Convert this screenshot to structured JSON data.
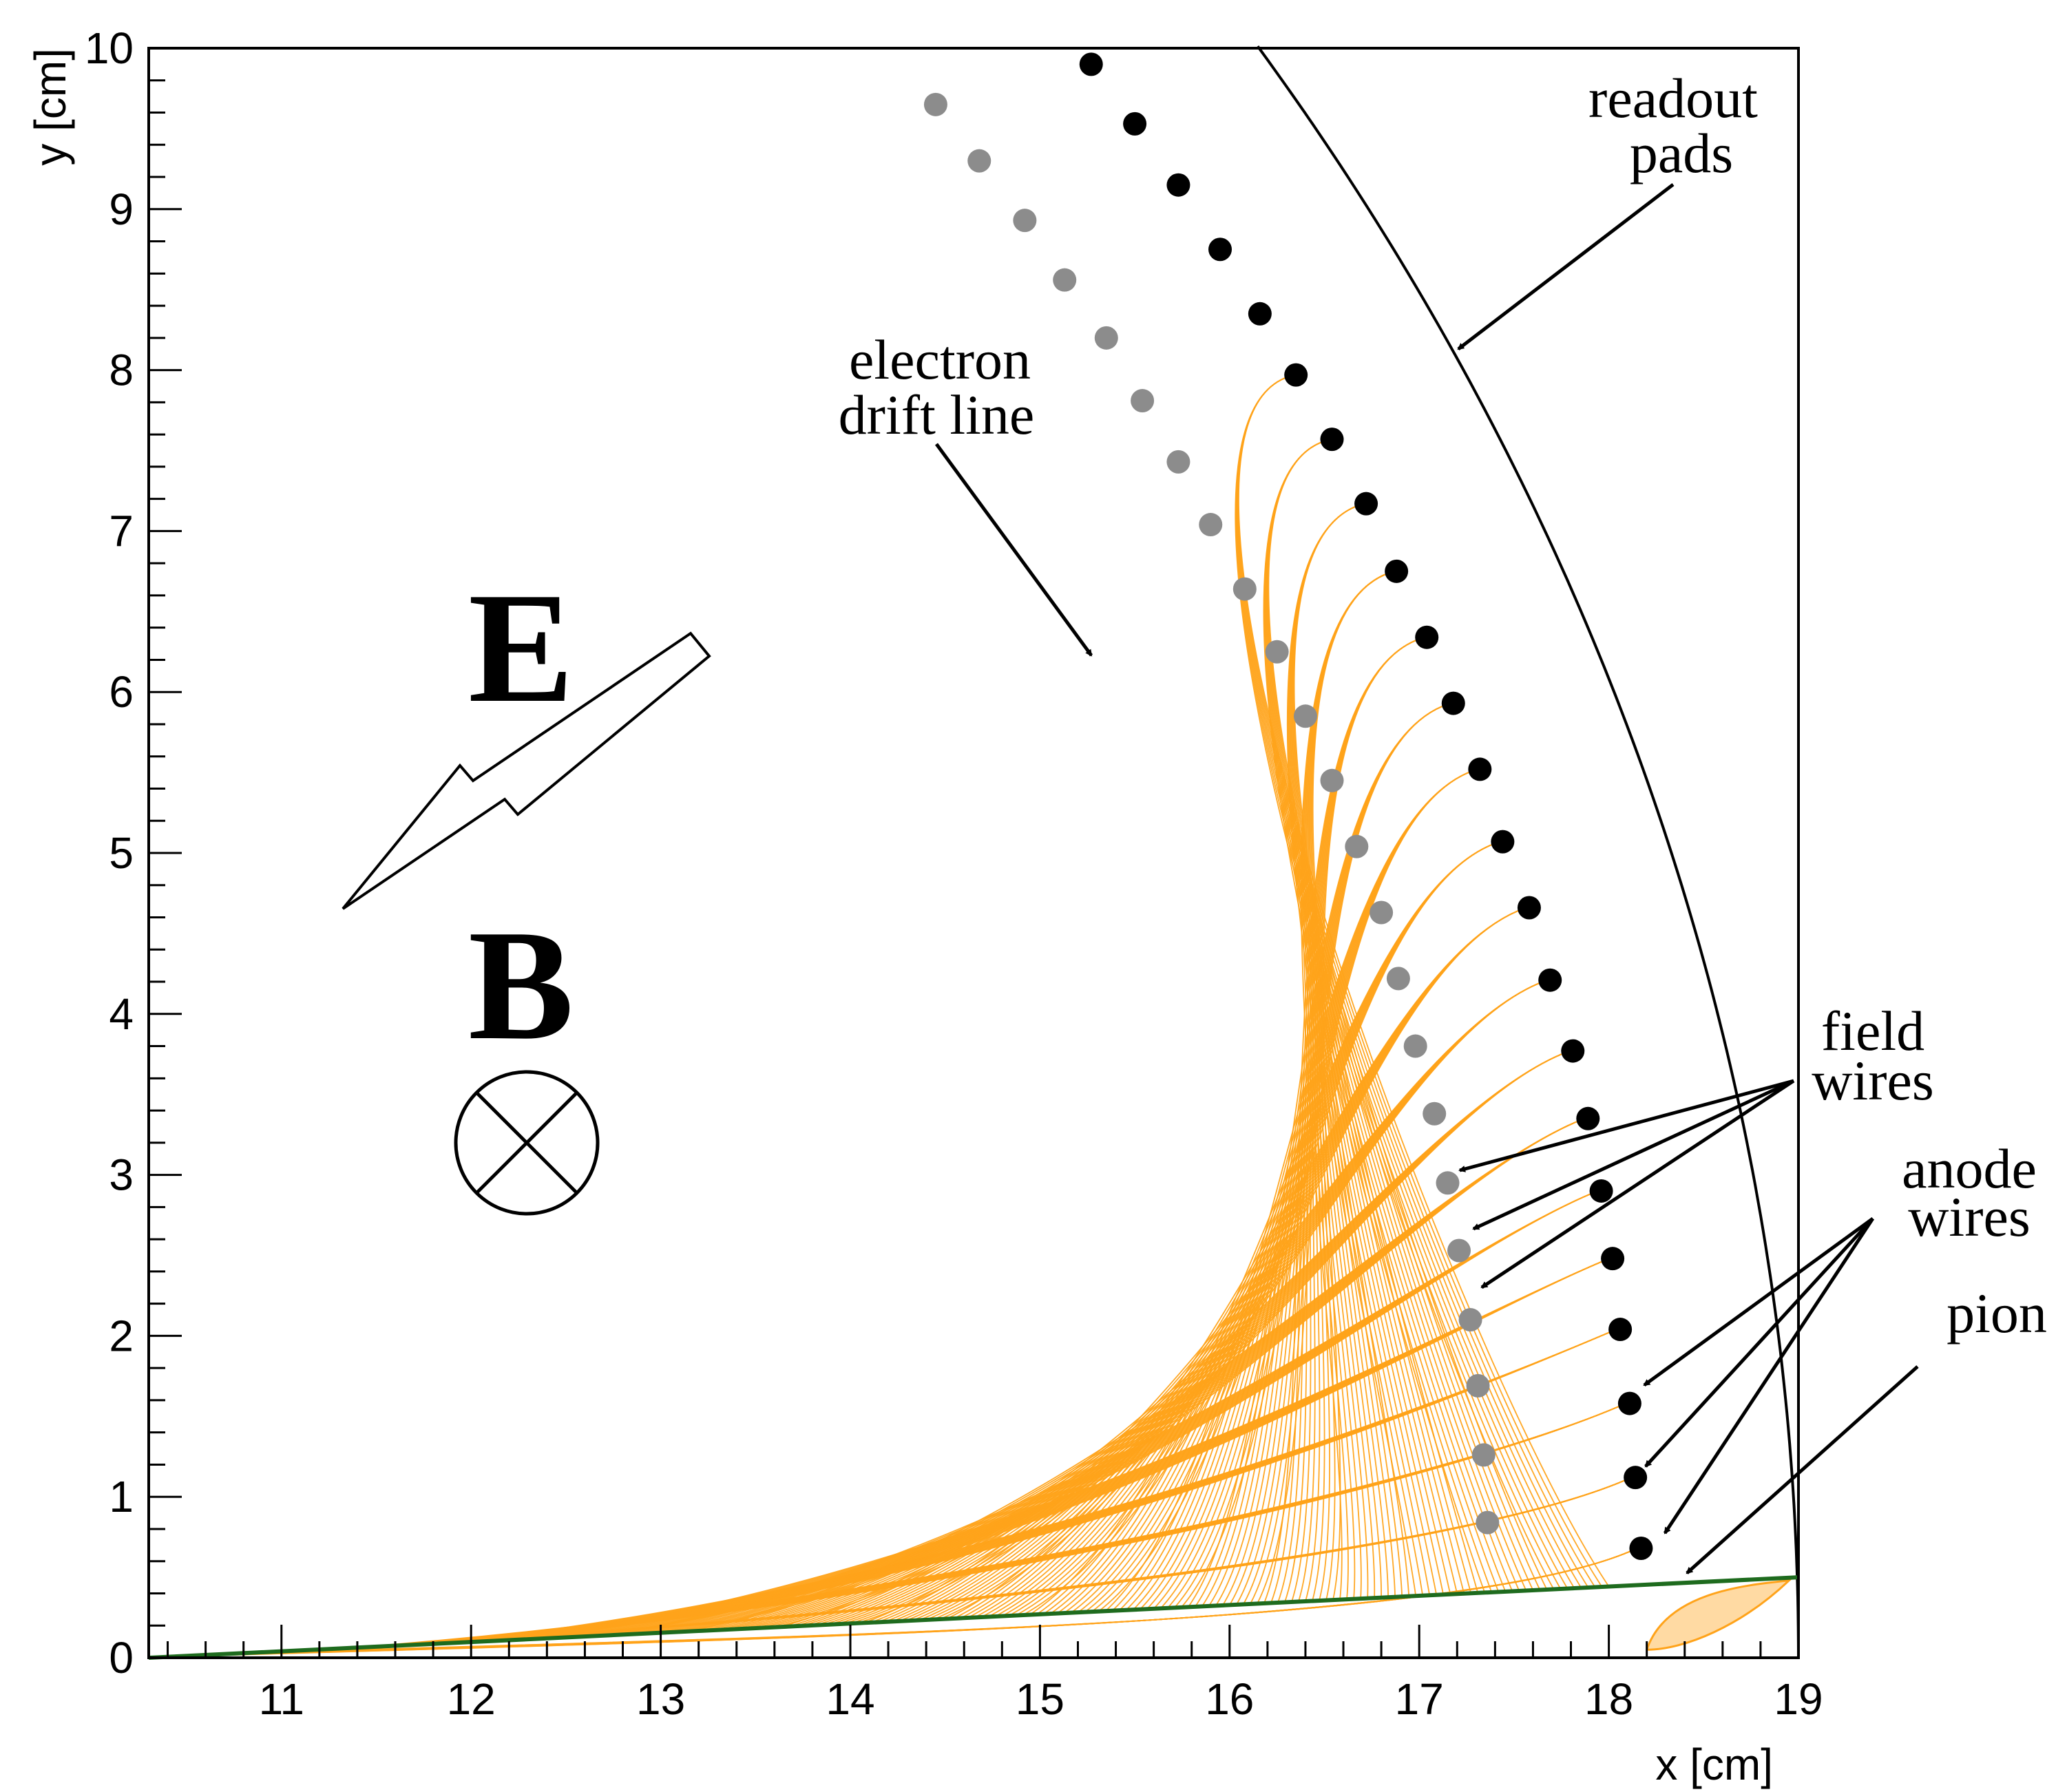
{
  "axes": {
    "xlabel": "x [cm]",
    "ylabel": "y [cm]",
    "xlim": [
      10.3,
      19
    ],
    "ylim": [
      0,
      10
    ],
    "xticks": [
      "11",
      "12",
      "13",
      "14",
      "15",
      "16",
      "17",
      "18",
      "19"
    ],
    "yticks": [
      "0",
      "1",
      "2",
      "3",
      "4",
      "5",
      "6",
      "7",
      "8",
      "9",
      "10"
    ]
  },
  "labels": {
    "E": "E",
    "B": "B",
    "readout1": "readout",
    "readout2": "pads",
    "electron1": "electron",
    "electron2": "drift line",
    "field1": "field",
    "field2": "wires",
    "anode1": "anode",
    "anode2": "wires",
    "pion": "pion"
  },
  "colors": {
    "drift": "#ffa31a",
    "field_wire": "#8c8c8c",
    "anode_wire": "#000000",
    "track": "#1e6b1e",
    "readout": "#000000"
  },
  "chart_data": {
    "type": "scatter",
    "series": [
      {
        "name": "field wires",
        "points": [
          [
            14.45,
            9.65
          ],
          [
            14.68,
            9.3
          ],
          [
            14.92,
            8.93
          ],
          [
            15.13,
            8.56
          ],
          [
            15.35,
            8.2
          ],
          [
            15.54,
            7.81
          ],
          [
            15.73,
            7.43
          ],
          [
            15.9,
            7.04
          ],
          [
            16.08,
            6.64
          ],
          [
            16.25,
            6.25
          ],
          [
            16.4,
            5.85
          ],
          [
            16.54,
            5.45
          ],
          [
            16.67,
            5.04
          ],
          [
            16.8,
            4.63
          ],
          [
            16.89,
            4.22
          ],
          [
            16.98,
            3.8
          ],
          [
            17.08,
            3.38
          ],
          [
            17.15,
            2.95
          ],
          [
            17.21,
            2.53
          ],
          [
            17.27,
            2.1
          ],
          [
            17.31,
            1.69
          ],
          [
            17.34,
            1.26
          ],
          [
            17.36,
            0.84
          ]
        ]
      },
      {
        "name": "anode wires",
        "points": [
          [
            15.27,
            9.9
          ],
          [
            15.5,
            9.53
          ],
          [
            15.73,
            9.15
          ],
          [
            15.95,
            8.75
          ],
          [
            16.16,
            8.35
          ],
          [
            16.35,
            7.97
          ],
          [
            16.54,
            7.57
          ],
          [
            16.72,
            7.17
          ],
          [
            16.88,
            6.75
          ],
          [
            17.04,
            6.34
          ],
          [
            17.18,
            5.93
          ],
          [
            17.32,
            5.52
          ],
          [
            17.44,
            5.07
          ],
          [
            17.58,
            4.66
          ],
          [
            17.69,
            4.21
          ],
          [
            17.81,
            3.77
          ],
          [
            17.89,
            3.35
          ],
          [
            17.96,
            2.9
          ],
          [
            18.02,
            2.48
          ],
          [
            18.06,
            2.04
          ],
          [
            18.11,
            1.58
          ],
          [
            18.14,
            1.12
          ],
          [
            18.17,
            0.68
          ]
        ]
      }
    ],
    "pion_track": {
      "x": [
        10.3,
        19
      ],
      "y": [
        0,
        0.5
      ]
    },
    "readout_arc_radius": 19
  }
}
